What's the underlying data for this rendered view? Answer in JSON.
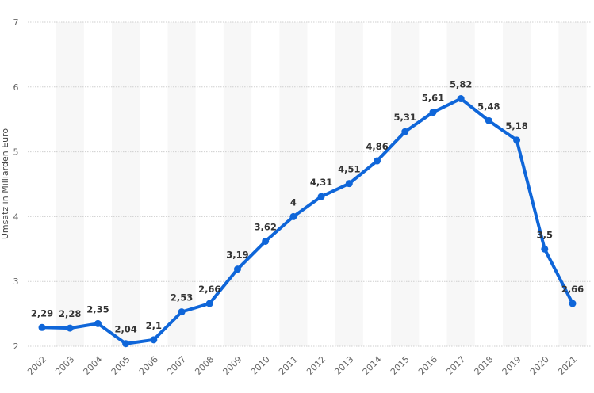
{
  "chart_data": {
    "type": "line",
    "title": "",
    "xlabel": "",
    "ylabel": "Umsatz in Milliarden Euro",
    "ylim": [
      2,
      7
    ],
    "yticks": [
      "2",
      "3",
      "4",
      "5",
      "6",
      "7"
    ],
    "grid": true,
    "categories": [
      "2002",
      "2003",
      "2004",
      "2005",
      "2006",
      "2007",
      "2008",
      "2009",
      "2010",
      "2011",
      "2012",
      "2013",
      "2014",
      "2015",
      "2016",
      "2017",
      "2018",
      "2019",
      "2020",
      "2021"
    ],
    "values": [
      2.29,
      2.28,
      2.35,
      2.04,
      2.1,
      2.53,
      2.66,
      3.19,
      3.62,
      4,
      4.31,
      4.51,
      4.86,
      5.31,
      5.61,
      5.82,
      5.48,
      5.18,
      3.5,
      2.66
    ],
    "data_labels": [
      "2,29",
      "2,28",
      "2,35",
      "2,04",
      "2,1",
      "2,53",
      "2,66",
      "3,19",
      "3,62",
      "4",
      "4,31",
      "4,51",
      "4,86",
      "5,31",
      "5,61",
      "5,82",
      "5,48",
      "5,18",
      "3,5",
      "2,66"
    ],
    "colors": {
      "line": "#0f66d9",
      "band": "#f7f7f7",
      "grid": "#cfcfcf"
    }
  }
}
